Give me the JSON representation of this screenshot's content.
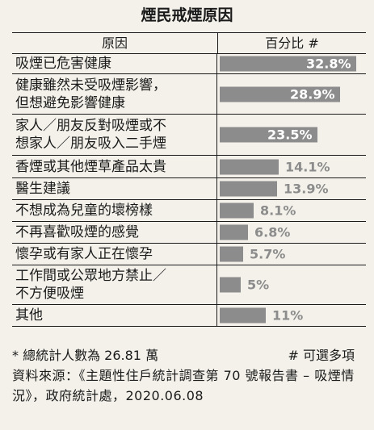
{
  "title": "煙民戒煙原因",
  "header": {
    "reason": "原因",
    "percent": "百分比 #"
  },
  "chart_data": {
    "type": "bar",
    "orientation": "horizontal",
    "title": "煙民戒煙原因",
    "xlim": [
      0,
      35
    ],
    "categories": [
      [
        "吸煙已危害健康"
      ],
      [
        "健康雖然未受吸煙影響，",
        "但想避免影響健康"
      ],
      [
        "家人／朋友反對吸煙或不",
        "想家人／朋友吸入二手煙"
      ],
      [
        "香煙或其他煙草產品太貴"
      ],
      [
        "醫生建議"
      ],
      [
        "不想成為兒童的壞榜樣"
      ],
      [
        "不再喜歡吸煙的感覺"
      ],
      [
        "懷孕或有家人正在懷孕"
      ],
      [
        "工作間或公眾地方禁止／",
        "不方便吸煙"
      ],
      [
        "其他"
      ]
    ],
    "values": [
      32.8,
      28.9,
      23.5,
      14.1,
      13.9,
      8.1,
      6.8,
      5.7,
      5,
      11
    ],
    "labels": [
      "32.8%",
      "28.9%",
      "23.5%",
      "14.1%",
      "13.9%",
      "8.1%",
      "6.8%",
      "5.7%",
      "5%",
      "11%"
    ],
    "bar_color": "#8c8c8c"
  },
  "footer": {
    "note": "* 總統計人數為 26.81 萬",
    "multi": "# 可選多項",
    "source": "資料來源：《主題性住戶統計調查第 70 號報告書 – 吸煙情況》，政府統計處，2020.06.08"
  }
}
